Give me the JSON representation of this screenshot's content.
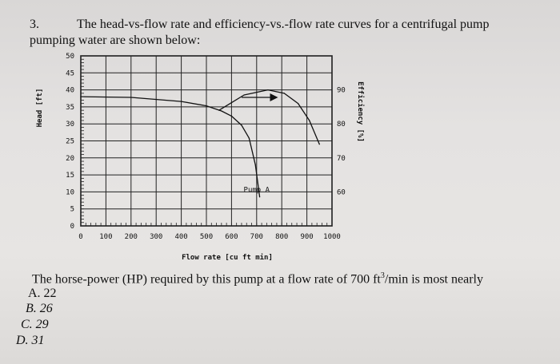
{
  "question": {
    "number": "3.",
    "line1": "The head-vs-flow rate and efficiency-vs.-flow rate curves for a centrifugal pump",
    "line2": "pumping water are shown below:",
    "prompt_before_exp": "The horse-power (HP) required by this pump at a flow rate of 700 ft",
    "prompt_exp": "3",
    "prompt_after_exp": "/min is most nearly",
    "options": [
      "A. 22",
      "B. 26",
      "C. 29",
      "D. 31"
    ]
  },
  "chart_data": {
    "type": "line",
    "xlabel": "Flow rate [cu ft min]",
    "ylabel_left": "Head [ft]",
    "ylabel_right": "Efficiency [%]",
    "x_ticks": [
      "0",
      "100",
      "200",
      "300",
      "400",
      "500",
      "600",
      "700",
      "800",
      "900",
      "1000"
    ],
    "y_left_ticks": [
      "0",
      "5",
      "10",
      "15",
      "20",
      "25",
      "30",
      "35",
      "40",
      "45",
      "50"
    ],
    "y_right_ticks": [
      "60",
      "70",
      "80",
      "90"
    ],
    "xlim": [
      0,
      1000
    ],
    "ylim_left": [
      0,
      50
    ],
    "ylim_right": [
      50,
      100
    ],
    "grid": true,
    "series": [
      {
        "name": "",
        "axis": "left",
        "x": [
          0,
          200,
          400,
          500,
          560,
          600,
          640,
          670,
          695,
          712
        ],
        "y": [
          38,
          37.8,
          36.6,
          35.3,
          33.8,
          32.3,
          29.6,
          25.8,
          18,
          8.5
        ]
      },
      {
        "name": "",
        "axis": "right",
        "x": [
          550,
          650,
          745,
          810,
          865,
          910,
          950
        ],
        "y": [
          84,
          88.5,
          90,
          89,
          86,
          81,
          74
        ]
      }
    ],
    "annotations": [
      {
        "text": "Pump A",
        "x": 700,
        "y": 10
      }
    ]
  }
}
